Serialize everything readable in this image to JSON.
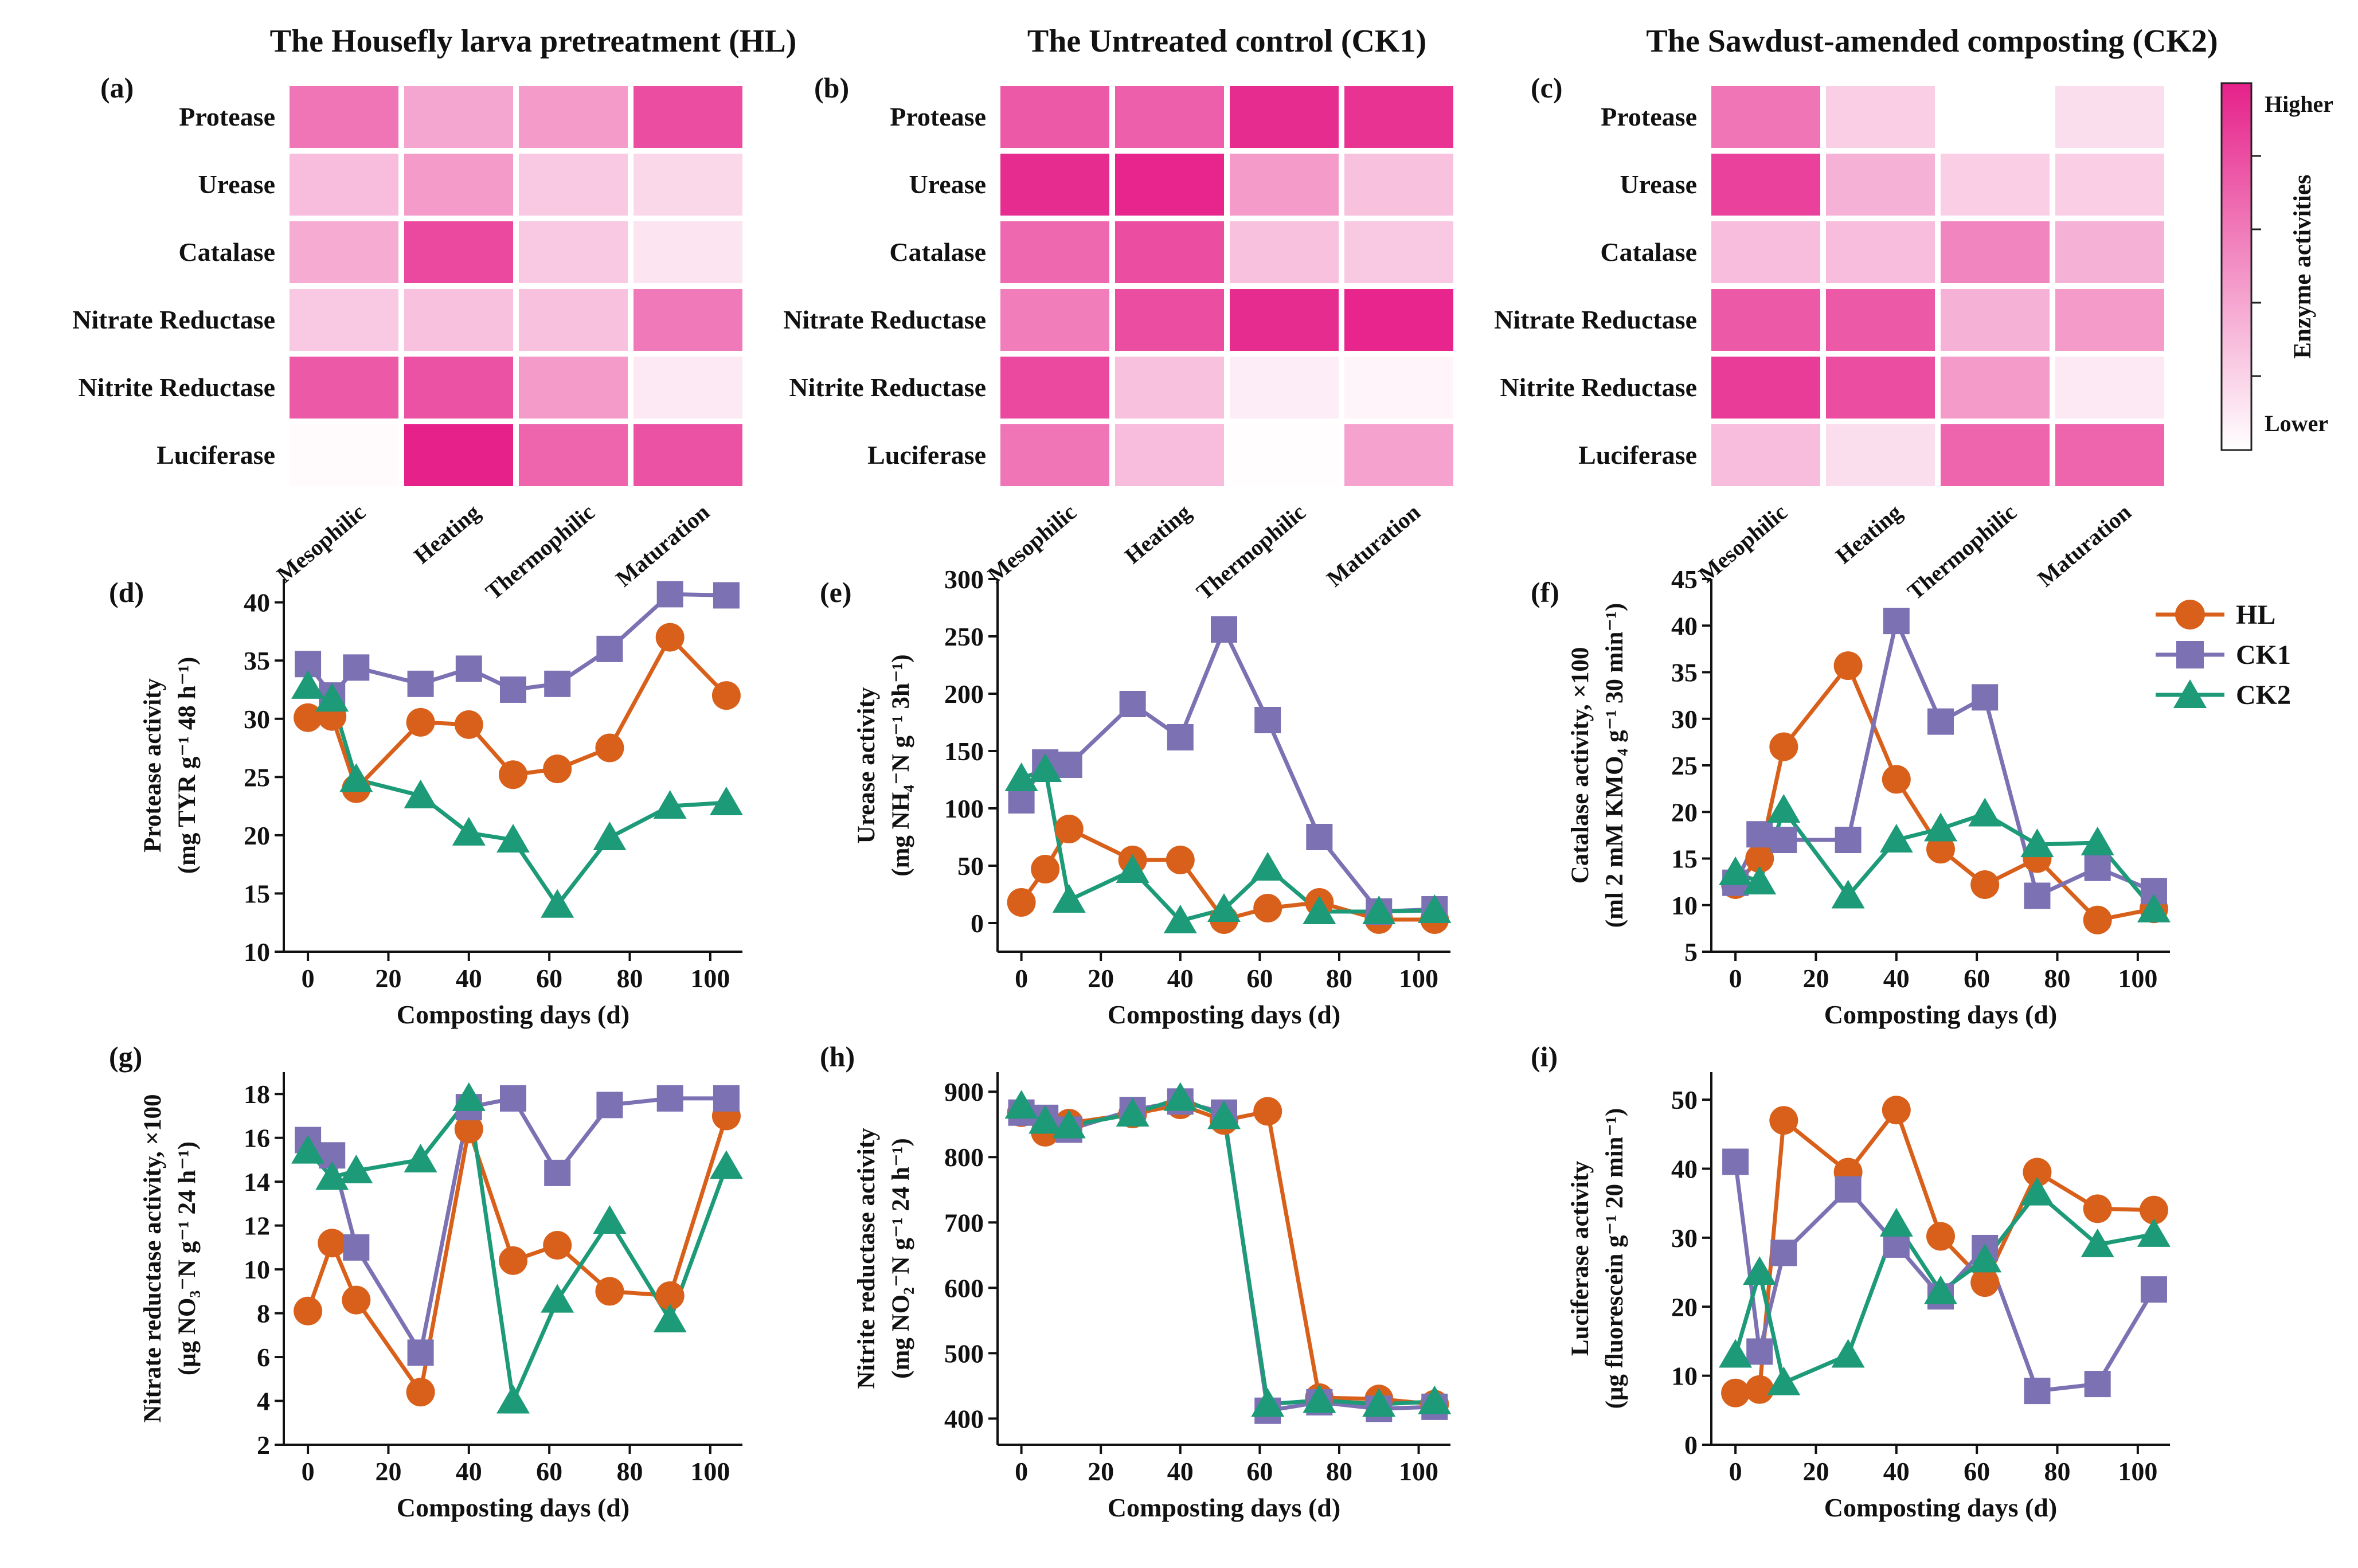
{
  "colors": {
    "HL": "#D9601A",
    "CK1": "#7B71B3",
    "CK2": "#1D9A78",
    "heat_low": "#FFFFFF",
    "heat_high": "#E6218A"
  },
  "panel_titles": [
    "The Housefly larva pretreatment (HL)",
    "The Untreated control (CK1)",
    "The Sawdust-amended composting (CK2)"
  ],
  "colorbar": {
    "label": "Enzyme activities",
    "higher": "Higher",
    "lower": "Lower"
  },
  "legend": [
    "HL",
    "CK1",
    "CK2"
  ],
  "chart_data": [
    {
      "id": "a",
      "type": "heatmap",
      "label": "(a)",
      "title": "The Housefly larva pretreatment (HL)",
      "rows": [
        "Protease",
        "Urease",
        "Catalase",
        "Nitrate Reductase",
        "Nitrite Reductase",
        "Luciferase"
      ],
      "cols": [
        "Mesophilic",
        "Heating",
        "Thermophilic",
        "Maturation"
      ],
      "values": [
        [
          0.62,
          0.4,
          0.45,
          0.8
        ],
        [
          0.3,
          0.45,
          0.25,
          0.18
        ],
        [
          0.38,
          0.82,
          0.25,
          0.12
        ],
        [
          0.25,
          0.28,
          0.28,
          0.6
        ],
        [
          0.75,
          0.78,
          0.45,
          0.1
        ],
        [
          0.02,
          1.0,
          0.7,
          0.78
        ]
      ]
    },
    {
      "id": "b",
      "type": "heatmap",
      "label": "(b)",
      "title": "The Untreated control (CK1)",
      "rows": [
        "Protease",
        "Urease",
        "Catalase",
        "Nitrate Reductase",
        "Nitrite Reductase",
        "Luciferase"
      ],
      "cols": [
        "Mesophilic",
        "Heating",
        "Thermophilic",
        "Maturation"
      ],
      "values": [
        [
          0.75,
          0.72,
          0.95,
          0.92
        ],
        [
          0.95,
          0.98,
          0.45,
          0.28
        ],
        [
          0.68,
          0.8,
          0.28,
          0.25
        ],
        [
          0.58,
          0.8,
          0.95,
          0.98
        ],
        [
          0.82,
          0.28,
          0.08,
          0.05
        ],
        [
          0.62,
          0.3,
          0.01,
          0.42
        ]
      ]
    },
    {
      "id": "c",
      "type": "heatmap",
      "label": "(c)",
      "title": "The Sawdust-amended composting (CK2)",
      "rows": [
        "Protease",
        "Urease",
        "Catalase",
        "Nitrate Reductase",
        "Nitrite Reductase",
        "Luciferase"
      ],
      "cols": [
        "Mesophilic",
        "Heating",
        "Thermophilic",
        "Maturation"
      ],
      "values": [
        [
          0.62,
          0.22,
          0.0,
          0.15
        ],
        [
          0.85,
          0.35,
          0.22,
          0.22
        ],
        [
          0.3,
          0.3,
          0.55,
          0.35
        ],
        [
          0.75,
          0.75,
          0.35,
          0.45
        ],
        [
          0.88,
          0.8,
          0.45,
          0.1
        ],
        [
          0.3,
          0.15,
          0.7,
          0.7
        ]
      ]
    },
    {
      "id": "d",
      "type": "line",
      "label": "(d)",
      "xlabel": "Composting days (d)",
      "ylabel": [
        "Protease activity",
        "(mg TYR g⁻¹ 48 h⁻¹)"
      ],
      "ylim": [
        10,
        42
      ],
      "yticks": [
        10,
        15,
        20,
        25,
        30,
        35,
        40
      ],
      "xlim": [
        -6,
        108
      ],
      "xticks": [
        0,
        20,
        40,
        60,
        80,
        100
      ],
      "x": [
        0,
        6,
        12,
        28,
        40,
        51,
        62,
        75,
        90,
        104
      ],
      "series": [
        {
          "name": "HL",
          "values": [
            30.1,
            30.2,
            24.0,
            29.7,
            29.5,
            25.2,
            25.7,
            27.5,
            37.0,
            32.0
          ]
        },
        {
          "name": "CK1",
          "values": [
            34.7,
            32.0,
            34.4,
            33.0,
            34.3,
            32.5,
            33.0,
            36.0,
            40.7,
            40.6
          ]
        },
        {
          "name": "CK2",
          "values": [
            32.8,
            31.7,
            24.8,
            23.4,
            20.2,
            19.6,
            14.0,
            19.8,
            22.5,
            22.8
          ]
        }
      ]
    },
    {
      "id": "e",
      "type": "line",
      "label": "(e)",
      "xlabel": "Composting days (d)",
      "ylabel": [
        "Urease activity",
        "(mg NH₄⁻N g⁻¹ 3h⁻¹)"
      ],
      "ylim": [
        -25,
        300
      ],
      "yticks": [
        0,
        50,
        100,
        150,
        200,
        250,
        300
      ],
      "xlim": [
        -6,
        108
      ],
      "xticks": [
        0,
        20,
        40,
        60,
        80,
        100
      ],
      "x": [
        0,
        6,
        12,
        28,
        40,
        51,
        62,
        75,
        90,
        104
      ],
      "series": [
        {
          "name": "HL",
          "values": [
            18,
            47,
            82,
            55,
            55,
            3,
            13,
            18,
            3,
            3
          ]
        },
        {
          "name": "CK1",
          "values": [
            107,
            140,
            138,
            191,
            162,
            256,
            177,
            75,
            10,
            12
          ]
        },
        {
          "name": "CK2",
          "values": [
            126,
            134,
            20,
            46,
            2,
            12,
            48,
            10,
            10,
            11
          ]
        }
      ]
    },
    {
      "id": "f",
      "type": "line",
      "label": "(f)",
      "xlabel": "Composting days (d)",
      "ylabel": [
        "Catalase activity, ×100",
        "(ml 2 mM KMO₄ g⁻¹ 30 min⁻¹)"
      ],
      "ylim": [
        5,
        45
      ],
      "yticks": [
        5,
        10,
        15,
        20,
        25,
        30,
        35,
        40,
        45
      ],
      "xlim": [
        -6,
        108
      ],
      "xticks": [
        0,
        20,
        40,
        60,
        80,
        100
      ],
      "x": [
        0,
        6,
        12,
        28,
        40,
        51,
        62,
        75,
        90,
        104
      ],
      "series": [
        {
          "name": "HL",
          "values": [
            12.2,
            15.0,
            27.0,
            35.7,
            23.5,
            16.0,
            12.2,
            15.0,
            8.4,
            9.6
          ]
        },
        {
          "name": "CK1",
          "values": [
            12.4,
            17.6,
            17.0,
            17.0,
            40.5,
            29.7,
            32.3,
            11.0,
            14.0,
            11.5
          ]
        },
        {
          "name": "CK2",
          "values": [
            13.5,
            12.5,
            20.2,
            11.0,
            17.0,
            18.2,
            19.8,
            16.5,
            16.7,
            9.5
          ]
        }
      ]
    },
    {
      "id": "g",
      "type": "line",
      "label": "(g)",
      "xlabel": "Composting days (d)",
      "ylabel": [
        "Nitrate reductase activity, ×100",
        "(μg NO₃⁻N g⁻¹ 24 h⁻¹)"
      ],
      "ylim": [
        2,
        19
      ],
      "yticks": [
        2,
        4,
        6,
        8,
        10,
        12,
        14,
        16,
        18
      ],
      "xlim": [
        -6,
        108
      ],
      "xticks": [
        0,
        20,
        40,
        60,
        80,
        100
      ],
      "x": [
        0,
        6,
        12,
        28,
        40,
        51,
        62,
        75,
        90,
        104
      ],
      "series": [
        {
          "name": "HL",
          "values": [
            8.1,
            11.2,
            8.6,
            4.4,
            16.4,
            10.4,
            11.1,
            9.0,
            8.8,
            17.0
          ]
        },
        {
          "name": "CK1",
          "values": [
            15.9,
            15.2,
            11.0,
            6.2,
            17.4,
            17.8,
            14.4,
            17.5,
            17.8,
            17.8
          ]
        },
        {
          "name": "CK2",
          "values": [
            15.4,
            14.2,
            14.5,
            15.0,
            17.8,
            4.0,
            8.6,
            12.2,
            7.7,
            14.7
          ]
        }
      ]
    },
    {
      "id": "h",
      "type": "line",
      "label": "(h)",
      "xlabel": "Composting days (d)",
      "ylabel": [
        "Nitrite reductase activity",
        "(mg NO₂⁻N g⁻¹ 24 h⁻¹)"
      ],
      "ylim": [
        360,
        930
      ],
      "yticks": [
        400,
        500,
        600,
        700,
        800,
        900
      ],
      "xlim": [
        -6,
        108
      ],
      "xticks": [
        0,
        20,
        40,
        60,
        80,
        100
      ],
      "x": [
        0,
        6,
        12,
        28,
        40,
        51,
        62,
        75,
        90,
        104
      ],
      "series": [
        {
          "name": "HL",
          "values": [
            868,
            838,
            852,
            866,
            880,
            856,
            870,
            432,
            430,
            422
          ]
        },
        {
          "name": "CK1",
          "values": [
            868,
            860,
            842,
            872,
            885,
            868,
            412,
            425,
            415,
            418
          ]
        },
        {
          "name": "CK2",
          "values": [
            878,
            855,
            848,
            866,
            890,
            862,
            422,
            428,
            422,
            426
          ]
        }
      ]
    },
    {
      "id": "i",
      "type": "line",
      "label": "(i)",
      "xlabel": "Composting days (d)",
      "ylabel": [
        "Luciferase activity",
        "(μg fluorescein g⁻¹ 20 min⁻¹)"
      ],
      "ylim": [
        0,
        54
      ],
      "yticks": [
        0,
        10,
        20,
        30,
        40,
        50
      ],
      "xlim": [
        -6,
        108
      ],
      "xticks": [
        0,
        20,
        40,
        60,
        80,
        100
      ],
      "x": [
        0,
        6,
        12,
        28,
        40,
        51,
        62,
        75,
        90,
        104
      ],
      "series": [
        {
          "name": "HL",
          "values": [
            7.5,
            8.0,
            47.0,
            39.5,
            48.5,
            30.2,
            23.5,
            39.5,
            34.2,
            34.0
          ]
        },
        {
          "name": "CK1",
          "values": [
            41.0,
            13.5,
            27.8,
            37.0,
            29.0,
            21.5,
            28.5,
            7.8,
            8.8,
            22.5
          ]
        },
        {
          "name": "CK2",
          "values": [
            13.0,
            25.0,
            9.0,
            13.0,
            32.0,
            22.2,
            26.8,
            36.5,
            29.0,
            30.5
          ]
        }
      ]
    }
  ]
}
